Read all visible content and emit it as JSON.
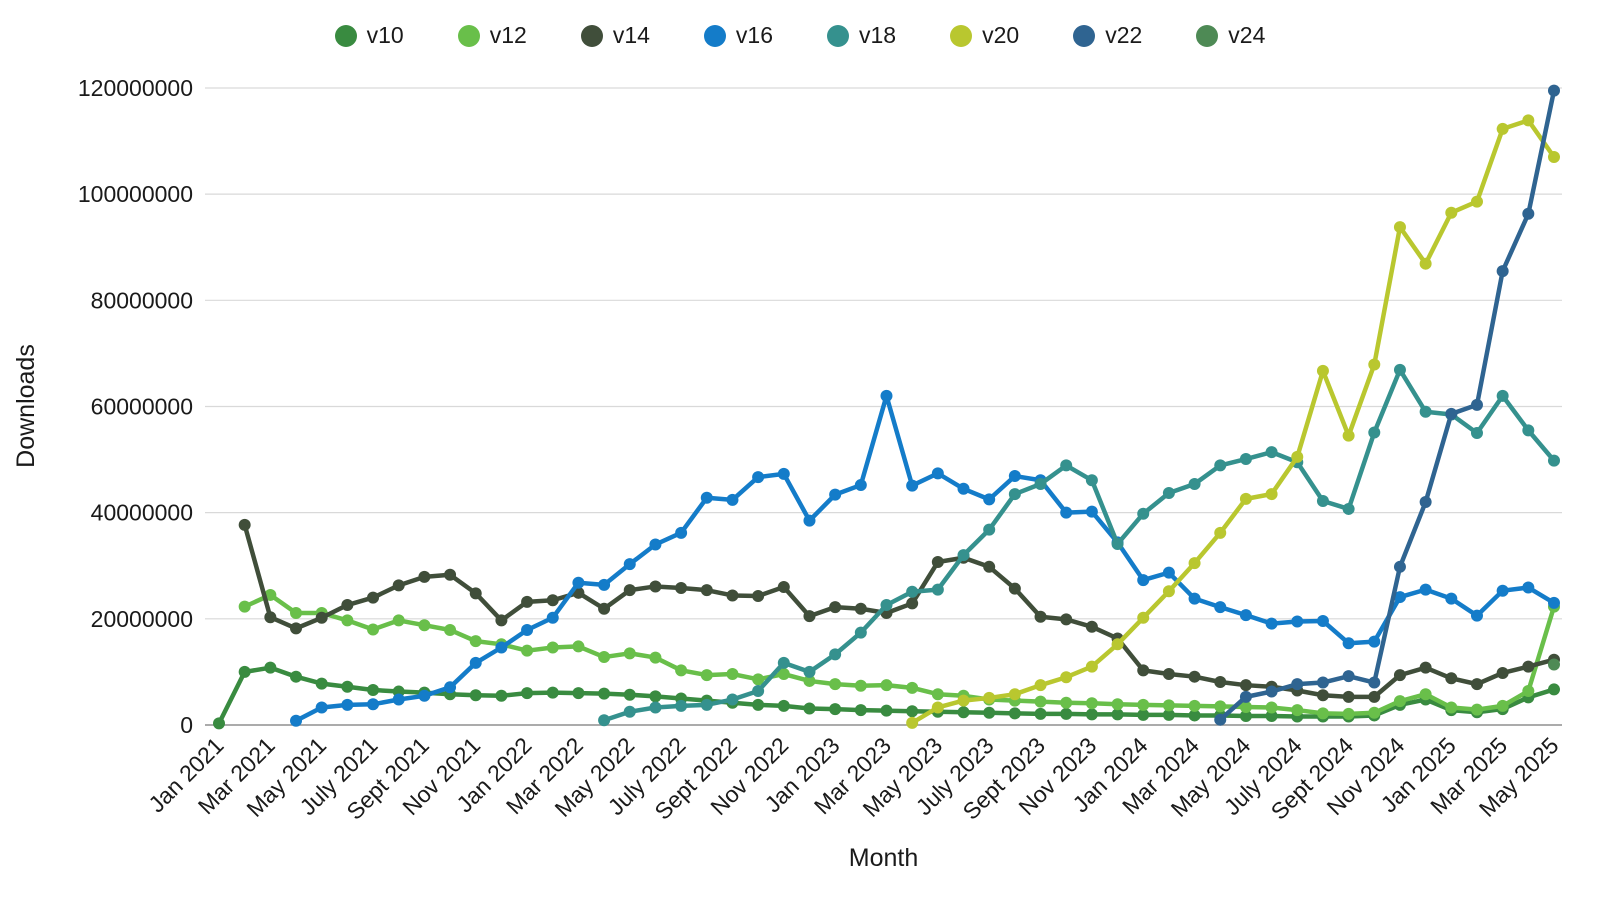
{
  "colors": {
    "grid": "#d9d9d9",
    "axis_line": "#8f8f8f",
    "text": "#1a1a1a",
    "background": "#ffffff"
  },
  "legend": {
    "position": "top",
    "items": [
      {
        "label": "v10",
        "color": "#398b40"
      },
      {
        "label": "v12",
        "color": "#69bf4a"
      },
      {
        "label": "v14",
        "color": "#404e3a"
      },
      {
        "label": "v16",
        "color": "#147cc9"
      },
      {
        "label": "v18",
        "color": "#35918e"
      },
      {
        "label": "v20",
        "color": "#b9c72f"
      },
      {
        "label": "v22",
        "color": "#2f6491"
      },
      {
        "label": "v24",
        "color": "#4e8a55"
      }
    ]
  },
  "axes": {
    "y": {
      "title": "Downloads",
      "tick_values": [
        0,
        20000000,
        40000000,
        60000000,
        80000000,
        100000000,
        120000000
      ]
    },
    "x": {
      "title": "Month",
      "tick_every": 2,
      "label_rotation_deg": -45
    }
  },
  "chart_data": {
    "type": "line",
    "title": "",
    "xlabel": "Month",
    "ylabel": "Downloads",
    "ylim": [
      0,
      120000000
    ],
    "grid": true,
    "legend_position": "top",
    "markers": true,
    "unit_multiplier": 1000000,
    "categories": [
      "Jan 2021",
      "Feb 2021",
      "Mar 2021",
      "Apr 2021",
      "May 2021",
      "June 2021",
      "July 2021",
      "Aug 2021",
      "Sept 2021",
      "Oct 2021",
      "Nov 2021",
      "Dec 2021",
      "Jan 2022",
      "Feb 2022",
      "Mar 2022",
      "Apr 2022",
      "May 2022",
      "June 2022",
      "July 2022",
      "Aug 2022",
      "Sept 2022",
      "Oct 2022",
      "Nov 2022",
      "Dec 2022",
      "Jan 2023",
      "Feb 2023",
      "Mar 2023",
      "Apr 2023",
      "May 2023",
      "June 2023",
      "July 2023",
      "Aug 2023",
      "Sept 2023",
      "Oct 2023",
      "Nov 2023",
      "Dec 2023",
      "Jan 2024",
      "Feb 2024",
      "Mar 2024",
      "Apr 2024",
      "May 2024",
      "June 2024",
      "July 2024",
      "Aug 2024",
      "Sept 2024",
      "Oct 2024",
      "Nov 2024",
      "Dec 2024",
      "Jan 2025",
      "Feb 2025",
      "Mar 2025",
      "Apr 2025",
      "May 2025"
    ],
    "series": [
      {
        "name": "v10",
        "color": "#398b40",
        "values_millions": [
          0.3,
          10,
          10.8,
          9.1,
          7.8,
          7.2,
          6.6,
          6.3,
          6.1,
          5.8,
          5.6,
          5.5,
          6,
          6.1,
          6,
          5.9,
          5.7,
          5.4,
          5,
          4.6,
          4.2,
          3.8,
          3.6,
          3.1,
          3,
          2.8,
          2.7,
          2.6,
          2.5,
          2.4,
          2.3,
          2.2,
          2.1,
          2.1,
          2,
          2,
          1.9,
          1.9,
          1.8,
          1.8,
          1.7,
          1.7,
          1.6,
          1.6,
          1.6,
          1.8,
          3.8,
          4.8,
          2.8,
          2.4,
          3,
          5.2,
          6.7
        ]
      },
      {
        "name": "v12",
        "color": "#69bf4a",
        "values_millions": [
          null,
          22.3,
          24.5,
          21.1,
          21.1,
          19.7,
          18,
          19.7,
          18.8,
          17.9,
          15.8,
          15.2,
          14,
          14.6,
          14.8,
          12.8,
          13.5,
          12.7,
          10.3,
          9.4,
          9.6,
          8.6,
          9.6,
          8.3,
          7.7,
          7.4,
          7.5,
          7,
          5.8,
          5.5,
          4.8,
          4.6,
          4.4,
          4.2,
          4.1,
          3.9,
          3.8,
          3.7,
          3.6,
          3.5,
          3.4,
          3.3,
          2.8,
          2.2,
          2.1,
          2.3,
          4.5,
          5.8,
          3.3,
          2.9,
          3.6,
          6.4,
          22.3
        ]
      },
      {
        "name": "v14",
        "color": "#404e3a",
        "values_millions": [
          null,
          37.7,
          20.3,
          18.2,
          20.2,
          22.6,
          24,
          26.3,
          27.9,
          28.3,
          24.8,
          19.7,
          23.2,
          23.5,
          24.9,
          21.9,
          25.4,
          26.1,
          25.8,
          25.4,
          24.4,
          24.3,
          26,
          20.5,
          22.2,
          21.9,
          21.1,
          22.9,
          30.7,
          31.5,
          29.8,
          25.7,
          20.4,
          19.9,
          18.5,
          16.3,
          10.3,
          9.6,
          9.1,
          8.1,
          7.5,
          7.2,
          6.5,
          5.6,
          5.3,
          5.3,
          9.4,
          10.8,
          8.8,
          7.7,
          9.8,
          11,
          12.3
        ]
      },
      {
        "name": "v16",
        "color": "#147cc9",
        "values_millions": [
          null,
          null,
          null,
          0.8,
          3.3,
          3.8,
          3.9,
          4.8,
          5.5,
          7.1,
          11.7,
          14.6,
          17.9,
          20.2,
          26.8,
          26.4,
          30.3,
          34,
          36.2,
          42.8,
          42.4,
          46.7,
          47.3,
          38.5,
          43.4,
          45.2,
          62,
          45.1,
          47.4,
          44.5,
          42.5,
          46.9,
          46.1,
          40,
          40.2,
          34.4,
          27.3,
          28.7,
          23.8,
          22.2,
          20.7,
          19.1,
          19.5,
          19.6,
          15.4,
          15.7,
          24.1,
          25.5,
          23.8,
          20.6,
          25.3,
          25.9,
          23
        ]
      },
      {
        "name": "v18",
        "color": "#35918e",
        "values_millions": [
          null,
          null,
          null,
          null,
          null,
          null,
          null,
          null,
          null,
          null,
          null,
          null,
          null,
          null,
          null,
          0.9,
          2.5,
          3.3,
          3.6,
          3.8,
          4.8,
          6.4,
          11.7,
          10,
          13.3,
          17.4,
          22.6,
          25.1,
          25.5,
          32,
          36.8,
          43.5,
          45.4,
          48.9,
          46.1,
          34.1,
          39.8,
          43.7,
          45.4,
          48.9,
          50.1,
          51.4,
          49.5,
          42.2,
          40.7,
          55.1,
          66.9,
          59,
          58.5,
          55,
          62,
          55.5,
          49.8
        ]
      },
      {
        "name": "v20",
        "color": "#b9c72f",
        "values_millions": [
          null,
          null,
          null,
          null,
          null,
          null,
          null,
          null,
          null,
          null,
          null,
          null,
          null,
          null,
          null,
          null,
          null,
          null,
          null,
          null,
          null,
          null,
          null,
          null,
          null,
          null,
          null,
          0.4,
          3.3,
          4.6,
          5.1,
          5.8,
          7.5,
          9,
          11,
          15.2,
          20.2,
          25.2,
          30.5,
          36.2,
          42.6,
          43.5,
          50.5,
          66.7,
          54.5,
          67.9,
          93.8,
          86.9,
          96.5,
          98.6,
          112.3,
          113.9,
          107
        ]
      },
      {
        "name": "v22",
        "color": "#2f6491",
        "values_millions": [
          null,
          null,
          null,
          null,
          null,
          null,
          null,
          null,
          null,
          null,
          null,
          null,
          null,
          null,
          null,
          null,
          null,
          null,
          null,
          null,
          null,
          null,
          null,
          null,
          null,
          null,
          null,
          null,
          null,
          null,
          null,
          null,
          null,
          null,
          null,
          null,
          null,
          null,
          null,
          1,
          5.3,
          6.3,
          7.7,
          8,
          9.2,
          8,
          29.8,
          42,
          58.6,
          60.3,
          85.5,
          96.3,
          119.5
        ]
      },
      {
        "name": "v24",
        "color": "#4e8a55",
        "values_millions": [
          null,
          null,
          null,
          null,
          null,
          null,
          null,
          null,
          null,
          null,
          null,
          null,
          null,
          null,
          null,
          null,
          null,
          null,
          null,
          null,
          null,
          null,
          null,
          null,
          null,
          null,
          null,
          null,
          null,
          null,
          null,
          null,
          null,
          null,
          null,
          null,
          null,
          null,
          null,
          null,
          null,
          null,
          null,
          null,
          null,
          null,
          null,
          null,
          null,
          null,
          null,
          null,
          11.4
        ]
      }
    ]
  }
}
